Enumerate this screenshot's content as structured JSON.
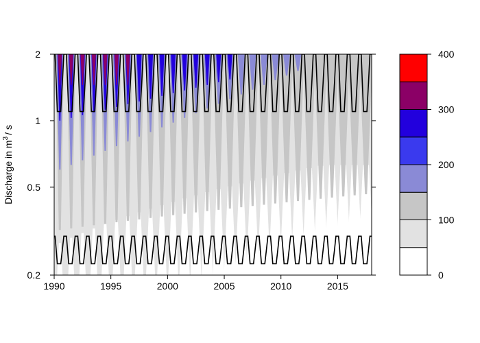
{
  "chart_data": {
    "type": "heatmap",
    "ylabel": "Discharge in m",
    "ylabel_sup": "3",
    "ylabel_suffix": "/ s",
    "y_scale": "log",
    "xlim": [
      1990,
      2018
    ],
    "ylim": [
      0.2,
      2
    ],
    "x_ticks": [
      1990,
      1995,
      2000,
      2005,
      2010,
      2015
    ],
    "y_ticks": [
      0.2,
      0.5,
      1,
      2
    ],
    "x_tick_labels": [
      "1990",
      "1995",
      "2000",
      "2005",
      "2010",
      "2015"
    ],
    "y_tick_labels": [
      "0.2",
      "0.5",
      "1",
      "2"
    ],
    "color_scale": {
      "levels": [
        0,
        50,
        100,
        150,
        200,
        250,
        300,
        350,
        400
      ],
      "colors": [
        "#ffffff",
        "#e2e2e2",
        "#c6c6c6",
        "#8a8ad6",
        "#3a3aee",
        "#2200dd",
        "#8b0066",
        "#ff0000"
      ],
      "tick_values": [
        0,
        100,
        200,
        300,
        400
      ],
      "tick_labels": [
        "0",
        "100",
        "200",
        "300",
        "400"
      ]
    },
    "bands": {
      "upper_line_range": [
        1.1,
        2.0
      ],
      "lower_line_range": [
        0.225,
        0.3
      ],
      "cycles_per_year": 1
    },
    "grid": false,
    "legend": "right"
  }
}
